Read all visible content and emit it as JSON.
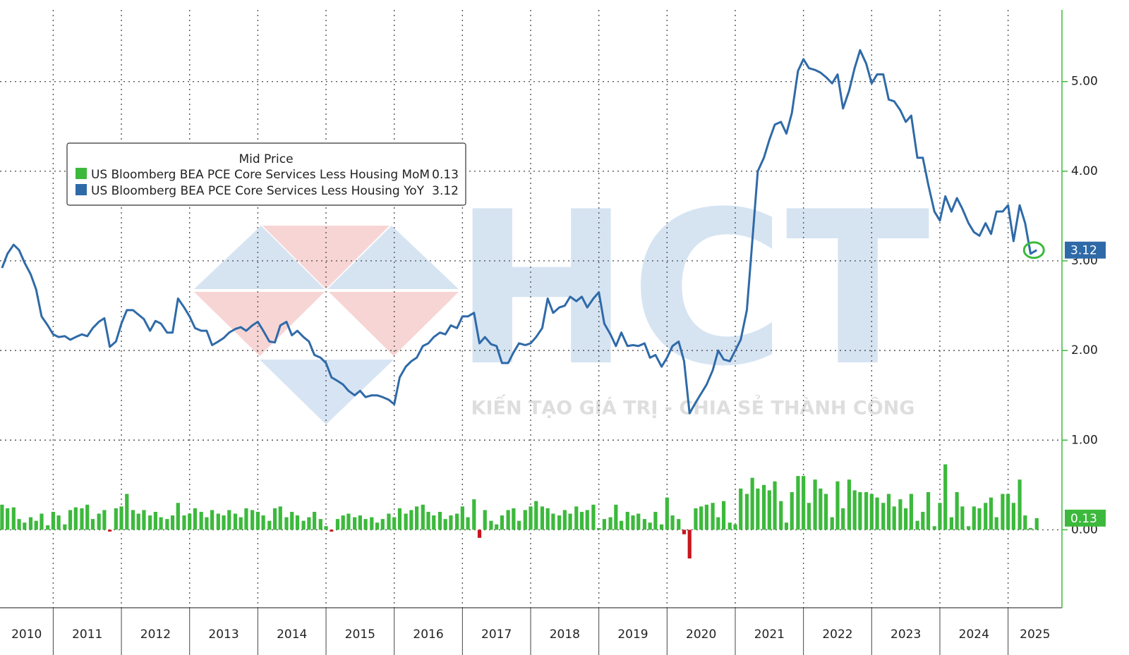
{
  "chart_data": {
    "type": "bar_line",
    "legend_title": "Mid Price",
    "watermark": {
      "logo": "HCT",
      "slogan": "KIẾN TẠO GIÁ TRỊ - CHIA SẺ THÀNH CÔNG"
    },
    "years": [
      "2010",
      "2011",
      "2012",
      "2013",
      "2014",
      "2015",
      "2016",
      "2017",
      "2018",
      "2019",
      "2020",
      "2021",
      "2022",
      "2023",
      "2024",
      "2025"
    ],
    "xlim": [
      2010.22,
      2025.79
    ],
    "xticks": [
      2011,
      2012,
      2013,
      2014,
      2015,
      2016,
      2017,
      2018,
      2019,
      2020,
      2021,
      2022,
      2023,
      2024,
      2025
    ],
    "ylim": [
      -0.87,
      5.8
    ],
    "yticks": [
      {
        "value": 0,
        "label": "0.00"
      },
      {
        "value": 1,
        "label": "1.00"
      },
      {
        "value": 2,
        "label": "2.00"
      },
      {
        "value": 3,
        "label": "3.00"
      },
      {
        "value": 4,
        "label": "4.00"
      },
      {
        "value": 5,
        "label": "5.00"
      }
    ],
    "grid": true,
    "x": [
      2010.25,
      2010.33,
      2010.42,
      2010.5,
      2010.58,
      2010.67,
      2010.75,
      2010.83,
      2010.92,
      2011,
      2011.08,
      2011.17,
      2011.25,
      2011.33,
      2011.42,
      2011.5,
      2011.58,
      2011.67,
      2011.75,
      2011.83,
      2011.92,
      2012,
      2012.08,
      2012.17,
      2012.25,
      2012.33,
      2012.42,
      2012.5,
      2012.58,
      2012.67,
      2012.75,
      2012.83,
      2012.92,
      2013,
      2013.08,
      2013.17,
      2013.25,
      2013.33,
      2013.42,
      2013.5,
      2013.58,
      2013.67,
      2013.75,
      2013.83,
      2013.92,
      2014,
      2014.08,
      2014.17,
      2014.25,
      2014.33,
      2014.42,
      2014.5,
      2014.58,
      2014.67,
      2014.75,
      2014.83,
      2014.92,
      2015,
      2015.08,
      2015.17,
      2015.25,
      2015.33,
      2015.42,
      2015.5,
      2015.58,
      2015.67,
      2015.75,
      2015.83,
      2015.92,
      2016,
      2016.08,
      2016.17,
      2016.25,
      2016.33,
      2016.42,
      2016.5,
      2016.58,
      2016.67,
      2016.75,
      2016.83,
      2016.92,
      2017,
      2017.08,
      2017.17,
      2017.25,
      2017.33,
      2017.42,
      2017.5,
      2017.58,
      2017.67,
      2017.75,
      2017.83,
      2017.92,
      2018,
      2018.08,
      2018.17,
      2018.25,
      2018.33,
      2018.42,
      2018.5,
      2018.58,
      2018.67,
      2018.75,
      2018.83,
      2018.92,
      2019,
      2019.08,
      2019.17,
      2019.25,
      2019.33,
      2019.42,
      2019.5,
      2019.58,
      2019.67,
      2019.75,
      2019.83,
      2019.92,
      2020,
      2020.08,
      2020.17,
      2020.25,
      2020.33,
      2020.42,
      2020.5,
      2020.58,
      2020.67,
      2020.75,
      2020.83,
      2020.92,
      2021,
      2021.08,
      2021.17,
      2021.25,
      2021.33,
      2021.42,
      2021.5,
      2021.58,
      2021.67,
      2021.75,
      2021.83,
      2021.92,
      2022,
      2022.08,
      2022.17,
      2022.25,
      2022.33,
      2022.42,
      2022.5,
      2022.58,
      2022.67,
      2022.75,
      2022.83,
      2022.92,
      2023,
      2023.08,
      2023.17,
      2023.25,
      2023.33,
      2023.42,
      2023.5,
      2023.58,
      2023.67,
      2023.75,
      2023.83,
      2023.92,
      2024,
      2024.08,
      2024.17,
      2024.25,
      2024.33,
      2024.42,
      2024.5,
      2024.58,
      2024.67,
      2024.75,
      2024.83,
      2024.92,
      2025,
      2025.08,
      2025.17,
      2025.25,
      2025.33,
      2025.42
    ],
    "series": [
      {
        "name": "US Bloomberg BEA PCE Core Services Less Housing MoM",
        "type": "bar",
        "color": "#3cb93c",
        "negative_color": "#c8161d",
        "values": [
          0.28,
          0.24,
          0.25,
          0.12,
          0.08,
          0.14,
          0.1,
          0.18,
          0.05,
          0.2,
          0.16,
          0.06,
          0.22,
          0.25,
          0.24,
          0.28,
          0.12,
          0.18,
          0.22,
          -0.02,
          0.24,
          0.26,
          0.4,
          0.22,
          0.18,
          0.22,
          0.16,
          0.2,
          0.14,
          0.12,
          0.16,
          0.3,
          0.16,
          0.18,
          0.24,
          0.2,
          0.14,
          0.22,
          0.18,
          0.16,
          0.22,
          0.18,
          0.14,
          0.24,
          0.22,
          0.2,
          0.16,
          0.1,
          0.24,
          0.26,
          0.14,
          0.2,
          0.16,
          0.1,
          0.14,
          0.2,
          0.12,
          0.04,
          -0.02,
          0.12,
          0.16,
          0.18,
          0.14,
          0.16,
          0.12,
          0.14,
          0.08,
          0.12,
          0.18,
          0.14,
          0.24,
          0.18,
          0.22,
          0.26,
          0.28,
          0.2,
          0.16,
          0.2,
          0.12,
          0.16,
          0.18,
          0.26,
          0.14,
          0.34,
          -0.09,
          0.22,
          0.1,
          0.06,
          0.16,
          0.22,
          0.24,
          0.1,
          0.22,
          0.26,
          0.32,
          0.26,
          0.24,
          0.18,
          0.16,
          0.22,
          0.18,
          0.26,
          0.2,
          0.22,
          0.28,
          0.02,
          0.12,
          0.14,
          0.28,
          0.1,
          0.2,
          0.16,
          0.18,
          0.12,
          0.08,
          0.2,
          0.06,
          0.36,
          0.16,
          0.12,
          -0.05,
          -0.32,
          0.24,
          0.26,
          0.28,
          0.3,
          0.14,
          0.32,
          0.08,
          0.06,
          0.46,
          0.4,
          0.58,
          0.46,
          0.5,
          0.44,
          0.54,
          0.32,
          0.08,
          0.42,
          0.6,
          0.6,
          0.3,
          0.56,
          0.46,
          0.4,
          0.14,
          0.54,
          0.24,
          0.56,
          0.44,
          0.42,
          0.42,
          0.4,
          0.36,
          0.3,
          0.4,
          0.26,
          0.34,
          0.24,
          0.4,
          0.1,
          0.2,
          0.42,
          0.04,
          0.3,
          0.73,
          0.14,
          0.42,
          0.26,
          0.04,
          0.26,
          0.24,
          0.3,
          0.36,
          0.14,
          0.4,
          0.4,
          0.3,
          0.56,
          0.16,
          0.02,
          0.13
        ]
      },
      {
        "name": "US Bloomberg BEA PCE Core Services Less Housing YoY",
        "type": "line",
        "color": "#2f6aa8",
        "values": [
          2.92,
          3.08,
          3.18,
          3.12,
          2.98,
          2.85,
          2.68,
          2.38,
          2.28,
          2.18,
          2.15,
          2.16,
          2.12,
          2.15,
          2.18,
          2.16,
          2.25,
          2.32,
          2.36,
          2.04,
          2.1,
          2.3,
          2.45,
          2.45,
          2.4,
          2.35,
          2.22,
          2.33,
          2.3,
          2.2,
          2.2,
          2.58,
          2.48,
          2.38,
          2.25,
          2.22,
          2.22,
          2.06,
          2.1,
          2.14,
          2.2,
          2.24,
          2.26,
          2.22,
          2.28,
          2.32,
          2.22,
          2.1,
          2.09,
          2.28,
          2.32,
          2.17,
          2.22,
          2.15,
          2.1,
          1.95,
          1.92,
          1.86,
          1.7,
          1.66,
          1.62,
          1.55,
          1.5,
          1.55,
          1.48,
          1.5,
          1.5,
          1.48,
          1.45,
          1.4,
          1.7,
          1.82,
          1.88,
          1.92,
          2.05,
          2.08,
          2.15,
          2.2,
          2.18,
          2.28,
          2.25,
          2.38,
          2.38,
          2.42,
          2.08,
          2.15,
          2.07,
          2.05,
          1.86,
          1.86,
          1.98,
          2.08,
          2.06,
          2.08,
          2.15,
          2.25,
          2.58,
          2.42,
          2.48,
          2.5,
          2.6,
          2.55,
          2.6,
          2.48,
          2.58,
          2.65,
          2.3,
          2.18,
          2.05,
          2.2,
          2.05,
          2.06,
          2.05,
          2.08,
          1.92,
          1.95,
          1.82,
          1.92,
          2.05,
          2.1,
          1.88,
          1.3,
          1.42,
          1.52,
          1.62,
          1.78,
          2.0,
          1.9,
          1.88,
          2.0,
          2.12,
          2.45,
          3.22,
          4.0,
          4.15,
          4.35,
          4.52,
          4.55,
          4.42,
          4.65,
          5.12,
          5.25,
          5.15,
          5.13,
          5.1,
          5.05,
          4.98,
          5.08,
          4.7,
          4.9,
          5.15,
          5.35,
          5.2,
          4.98,
          5.08,
          5.08,
          4.8,
          4.78,
          4.68,
          4.55,
          4.62,
          4.15,
          4.15,
          3.85,
          3.55,
          3.45,
          3.72,
          3.55,
          3.7,
          3.58,
          3.42,
          3.32,
          3.28,
          3.42,
          3.3,
          3.55,
          3.55,
          3.62,
          3.22,
          3.62,
          3.42,
          3.08,
          3.12
        ]
      }
    ]
  }
}
